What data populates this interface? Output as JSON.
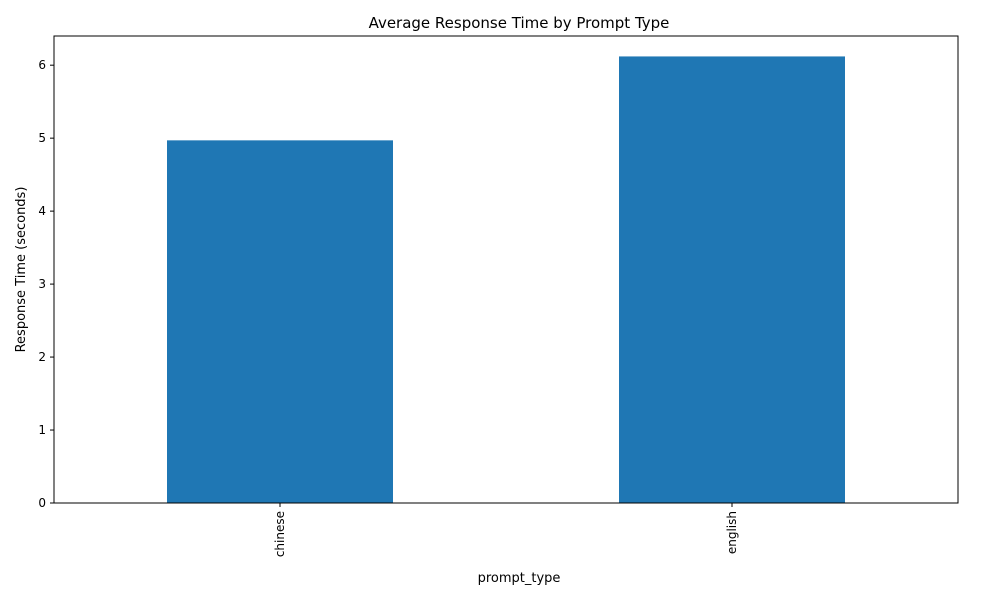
{
  "chart_data": {
    "type": "bar",
    "title": "Average Response Time by Prompt Type",
    "xlabel": "prompt_type",
    "ylabel": "Response Time (seconds)",
    "categories": [
      "chinese",
      "english"
    ],
    "values": [
      4.97,
      6.12
    ],
    "ylim": [
      0,
      6.4
    ],
    "yticks": [
      0,
      1,
      2,
      3,
      4,
      5,
      6
    ],
    "bar_color": "#1f77b4",
    "grid": false,
    "legend": "none"
  }
}
